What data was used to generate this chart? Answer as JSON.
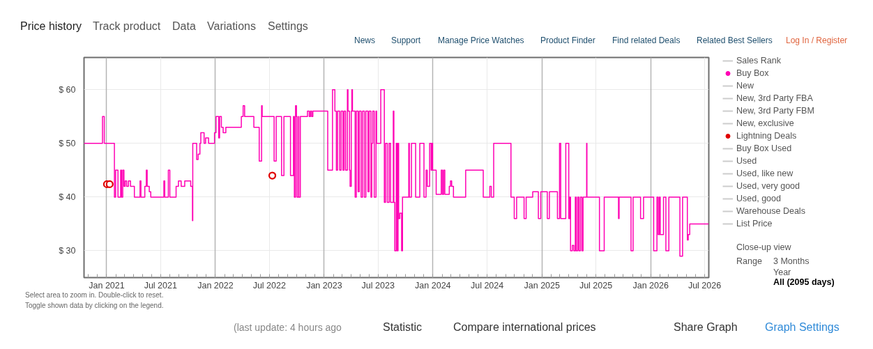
{
  "chart_data": {
    "type": "step",
    "xlim": [
      "2020-10-17",
      "2026-07-15"
    ],
    "ylim": [
      25,
      66
    ],
    "xticks": [
      {
        "value": "2020-11",
        "label": null
      },
      {
        "value": "2020-12",
        "label": null
      },
      {
        "value": "2021-01",
        "label": "Jan 2021"
      },
      {
        "value": "2021-02",
        "label": null
      },
      {
        "value": "2021-03",
        "label": null
      },
      {
        "value": "2021-04",
        "label": null
      },
      {
        "value": "2021-05",
        "label": null
      },
      {
        "value": "2021-06",
        "label": null
      },
      {
        "value": "2021-07",
        "label": "Jul 2021"
      },
      {
        "value": "2021-08",
        "label": null
      },
      {
        "value": "2021-09",
        "label": null
      },
      {
        "value": "2021-10",
        "label": null
      },
      {
        "value": "2021-11",
        "label": null
      },
      {
        "value": "2021-12",
        "label": null
      },
      {
        "value": "2022-01",
        "label": "Jan 2022"
      },
      {
        "value": "2022-02",
        "label": null
      },
      {
        "value": "2022-03",
        "label": null
      },
      {
        "value": "2022-04",
        "label": null
      },
      {
        "value": "2022-05",
        "label": null
      },
      {
        "value": "2022-06",
        "label": null
      },
      {
        "value": "2022-07",
        "label": "Jul 2022"
      },
      {
        "value": "2022-08",
        "label": null
      },
      {
        "value": "2022-09",
        "label": null
      },
      {
        "value": "2022-10",
        "label": null
      },
      {
        "value": "2022-11",
        "label": null
      },
      {
        "value": "2022-12",
        "label": null
      },
      {
        "value": "2023-01",
        "label": "Jan 2023"
      },
      {
        "value": "2023-02",
        "label": null
      },
      {
        "value": "2023-03",
        "label": null
      },
      {
        "value": "2023-04",
        "label": null
      },
      {
        "value": "2023-05",
        "label": null
      },
      {
        "value": "2023-06",
        "label": null
      },
      {
        "value": "2023-07",
        "label": "Jul 2023"
      },
      {
        "value": "2023-08",
        "label": null
      },
      {
        "value": "2023-09",
        "label": null
      },
      {
        "value": "2023-10",
        "label": null
      },
      {
        "value": "2023-11",
        "label": null
      },
      {
        "value": "2023-12",
        "label": null
      },
      {
        "value": "2024-01",
        "label": "Jan 2024"
      },
      {
        "value": "2024-02",
        "label": null
      },
      {
        "value": "2024-03",
        "label": null
      },
      {
        "value": "2024-04",
        "label": null
      },
      {
        "value": "2024-05",
        "label": null
      },
      {
        "value": "2024-06",
        "label": null
      },
      {
        "value": "2024-07",
        "label": "Jul 2024"
      },
      {
        "value": "2024-08",
        "label": null
      },
      {
        "value": "2024-09",
        "label": null
      },
      {
        "value": "2024-10",
        "label": null
      },
      {
        "value": "2024-11",
        "label": null
      },
      {
        "value": "2024-12",
        "label": null
      },
      {
        "value": "2025-01",
        "label": "Jan 2025"
      },
      {
        "value": "2025-02",
        "label": null
      },
      {
        "value": "2025-03",
        "label": null
      },
      {
        "value": "2025-04",
        "label": null
      },
      {
        "value": "2025-05",
        "label": null
      },
      {
        "value": "2025-06",
        "label": null
      },
      {
        "value": "2025-07",
        "label": "Jul 2025"
      },
      {
        "value": "2025-08",
        "label": null
      },
      {
        "value": "2025-09",
        "label": null
      },
      {
        "value": "2025-10",
        "label": null
      },
      {
        "value": "2025-11",
        "label": null
      },
      {
        "value": "2025-12",
        "label": null
      },
      {
        "value": "2026-01",
        "label": "Jan 2026"
      },
      {
        "value": "2026-02",
        "label": null
      },
      {
        "value": "2026-03",
        "label": null
      },
      {
        "value": "2026-04",
        "label": null
      },
      {
        "value": "2026-05",
        "label": null
      },
      {
        "value": "2026-06",
        "label": null
      },
      {
        "value": "2026-07",
        "label": "Jul 2026"
      }
    ],
    "yticks": [
      {
        "value": 30,
        "label": "$ 30"
      },
      {
        "value": 40,
        "label": "$ 40"
      },
      {
        "value": 50,
        "label": "$ 50"
      },
      {
        "value": 60,
        "label": "$ 60"
      }
    ],
    "grid": true,
    "legend": "right",
    "series": [
      {
        "name": "Sales Rank",
        "type": "line",
        "color": "#cccccc"
      },
      {
        "name": "Buy Box",
        "color": "#ff00b4",
        "line_style": "solid",
        "x": [
          "2020-10-17",
          "2020-12-18",
          "2020-12-24",
          "2021-01-27",
          "2021-01-31",
          "2021-02-08",
          "2021-02-17",
          "2021-02-20",
          "2021-02-24",
          "2021-02-28",
          "2021-03-04",
          "2021-03-09",
          "2021-03-15",
          "2021-03-22",
          "2021-04-04",
          "2021-04-23",
          "2021-04-26",
          "2021-05-09",
          "2021-05-14",
          "2021-05-17",
          "2021-05-24",
          "2021-05-29",
          "2021-07-12",
          "2021-07-15",
          "2021-07-27",
          "2021-08-01",
          "2021-08-22",
          "2021-08-30",
          "2021-09-08",
          "2021-09-20",
          "2021-10-10",
          "2021-10-16",
          "2021-10-17",
          "2021-10-30",
          "2021-11-04",
          "2021-11-10",
          "2021-11-13",
          "2021-11-24",
          "2021-11-29",
          "2021-12-09",
          "2021-12-29",
          "2022-01-03",
          "2022-01-12",
          "2022-01-15",
          "2022-01-21",
          "2022-01-27",
          "2022-02-05",
          "2022-03-29",
          "2022-04-04",
          "2022-04-09",
          "2022-05-10",
          "2022-05-28",
          "2022-06-05",
          "2022-06-07",
          "2022-07-17",
          "2022-07-24",
          "2022-08-11",
          "2022-08-19",
          "2022-09-10",
          "2022-09-20",
          "2022-09-23",
          "2022-09-27",
          "2022-09-30",
          "2022-10-02",
          "2022-10-07",
          "2022-10-08",
          "2022-10-13",
          "2022-11-06",
          "2022-11-12",
          "2022-11-16",
          "2022-11-20",
          "2022-11-24",
          "2023-01-13",
          "2023-01-29",
          "2023-02-06",
          "2023-02-11",
          "2023-02-15",
          "2023-02-22",
          "2023-02-27",
          "2023-03-05",
          "2023-03-09",
          "2023-03-14",
          "2023-03-20",
          "2023-03-22",
          "2023-03-27",
          "2023-03-29",
          "2023-04-02",
          "2023-04-04",
          "2023-04-06",
          "2023-04-15",
          "2023-04-19",
          "2023-04-25",
          "2023-04-29",
          "2023-05-05",
          "2023-05-10",
          "2023-05-16",
          "2023-05-21",
          "2023-05-28",
          "2023-06-01",
          "2023-06-07",
          "2023-06-10",
          "2023-06-13",
          "2023-06-18",
          "2023-06-24",
          "2023-06-26",
          "2023-07-10",
          "2023-07-22",
          "2023-07-26",
          "2023-08-01",
          "2023-08-07",
          "2023-08-12",
          "2023-08-21",
          "2023-08-23",
          "2023-08-26",
          "2023-08-31",
          "2023-09-03",
          "2023-09-06",
          "2023-09-08",
          "2023-09-12",
          "2023-09-18",
          "2023-09-21",
          "2023-10-12",
          "2023-10-14",
          "2023-10-21",
          "2023-11-04",
          "2023-11-18",
          "2023-12-02",
          "2023-12-09",
          "2023-12-13",
          "2023-12-21",
          "2023-12-26",
          "2023-12-29",
          "2023-12-31",
          "2024-01-12",
          "2024-01-29",
          "2024-02-02",
          "2024-02-06",
          "2024-02-10",
          "2024-02-25",
          "2024-02-29",
          "2024-03-04",
          "2024-03-10",
          "2024-04-20",
          "2024-06-18",
          "2024-07-10",
          "2024-07-15",
          "2024-07-23",
          "2024-09-19",
          "2024-09-30",
          "2024-10-08",
          "2024-11-02",
          "2024-11-09",
          "2024-12-01",
          "2024-12-20",
          "2024-12-28",
          "2025-01-19",
          "2025-01-26",
          "2025-02-22",
          "2025-03-01",
          "2025-03-05",
          "2025-03-22",
          "2025-04-01",
          "2025-04-04",
          "2025-04-07",
          "2025-04-13",
          "2025-04-18",
          "2025-04-23",
          "2025-04-26",
          "2025-05-01",
          "2025-05-05",
          "2025-05-10",
          "2025-05-15",
          "2025-05-19",
          "2025-05-31",
          "2025-06-01",
          "2025-07-13",
          "2025-07-29",
          "2025-09-15",
          "2025-09-17",
          "2025-10-27",
          "2025-11-03",
          "2025-11-28",
          "2025-12-08",
          "2026-01-11",
          "2026-01-22",
          "2026-01-26",
          "2026-01-30",
          "2026-02-02",
          "2026-02-13",
          "2026-02-21",
          "2026-03-03",
          "2026-04-09",
          "2026-04-18",
          "2026-05-04",
          "2026-05-07",
          "2026-05-12",
          "2026-07-15"
        ],
        "values": [
          50,
          55,
          50,
          40,
          45,
          40,
          45,
          40,
          45,
          42,
          43,
          42,
          43,
          42,
          40,
          43,
          40,
          42,
          45,
          42,
          41,
          40,
          43,
          40,
          45,
          40,
          42,
          43,
          42,
          43,
          42,
          35.6,
          50,
          47,
          48,
          50,
          52,
          50,
          51,
          50,
          52,
          55,
          51,
          55,
          53,
          52,
          53,
          55,
          57,
          55,
          53,
          46.7,
          57,
          55,
          46.7,
          55,
          44,
          55,
          44,
          55,
          40,
          57,
          55,
          40,
          55,
          40,
          55,
          56,
          55,
          56,
          55,
          56,
          45,
          60,
          56,
          45,
          56,
          45,
          56,
          45,
          56,
          45,
          60,
          56,
          45,
          42,
          56,
          60,
          56,
          40,
          56,
          41,
          56,
          40,
          56,
          40,
          56,
          41,
          56,
          40,
          50,
          56,
          40,
          56,
          50,
          60,
          39,
          50,
          39,
          50,
          39,
          56,
          39,
          30,
          50,
          30,
          50,
          36,
          37,
          30,
          40,
          50,
          40,
          50,
          40,
          50,
          40,
          45,
          42,
          50,
          45,
          50,
          45,
          40.5,
          45,
          40.5,
          45,
          40.5,
          42,
          43,
          42,
          40,
          45,
          40,
          42,
          40,
          50,
          40,
          36,
          40,
          36,
          40,
          41,
          36,
          41,
          36,
          41,
          36,
          50,
          36,
          50,
          36,
          40,
          30,
          31,
          30,
          40,
          30,
          40,
          30,
          40,
          30,
          40,
          50,
          40,
          30,
          40,
          36,
          40,
          30,
          40,
          36,
          40,
          30,
          40,
          33,
          40,
          33,
          40,
          30,
          40,
          29,
          40,
          32,
          33,
          35,
          35
        ]
      },
      {
        "name": "New",
        "type": "line",
        "color": "#cccccc"
      },
      {
        "name": "New, 3rd Party FBA",
        "type": "line",
        "color": "#cccccc"
      },
      {
        "name": "New, 3rd Party FBM",
        "type": "line",
        "color": "#cccccc"
      },
      {
        "name": "New, exclusive",
        "type": "line",
        "color": "#cccccc"
      },
      {
        "name": "Lightning Deals",
        "type": "scatter",
        "color": "#e00000",
        "marker": "circle",
        "x": [
          "2021-01-02",
          "2021-01-11",
          "2022-07-11"
        ],
        "values": [
          42.4,
          42.4,
          44
        ]
      },
      {
        "name": "Buy Box Used",
        "type": "line",
        "color": "#cccccc"
      },
      {
        "name": "Used",
        "type": "line",
        "color": "#cccccc"
      },
      {
        "name": "Used, like new",
        "type": "line",
        "color": "#cccccc"
      },
      {
        "name": "Used, very good",
        "type": "line",
        "color": "#cccccc"
      },
      {
        "name": "Used, good",
        "type": "line",
        "color": "#cccccc"
      },
      {
        "name": "Warehouse Deals",
        "type": "line",
        "color": "#cccccc"
      },
      {
        "name": "List Price",
        "type": "line",
        "color": "#cccccc"
      }
    ],
    "annotations": [
      "Price history",
      "Track product",
      "Data",
      "Variations",
      "Settings",
      "News",
      "Support",
      "Manage Price Watches",
      "Product Finder",
      "Find related Deals",
      "Related Best Sellers",
      "Log In / Register",
      "Select area to zoom in. Double-click to reset.",
      "Toggle shown data by clicking on the legend.",
      "Close-up view",
      "Range",
      "3 Months",
      "Year",
      "All (2095 days)",
      "(last update: 4 hours ago",
      "Statistic",
      "Compare international prices",
      "Share Graph",
      "Graph Settings"
    ]
  }
}
